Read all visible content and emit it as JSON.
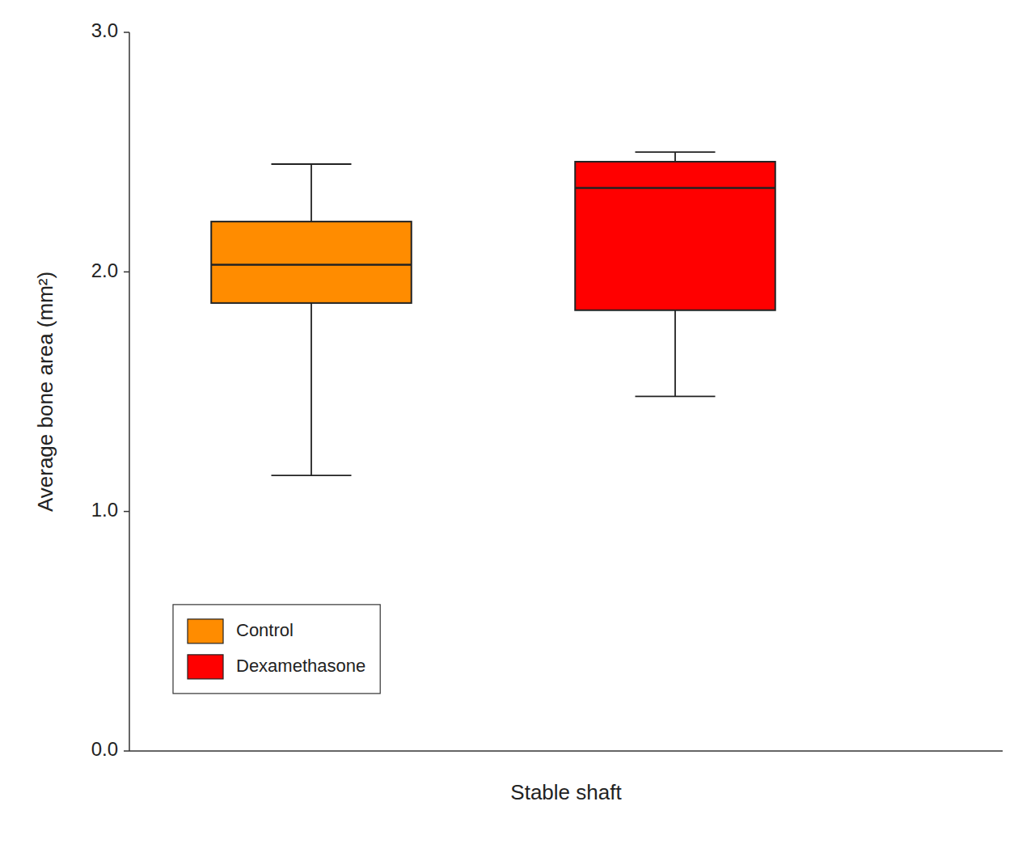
{
  "chart_data": {
    "type": "box",
    "xlabel": "Stable shaft",
    "ylabel": "Average bone area (mm²)",
    "series": [
      {
        "name": "Control",
        "color": "#FF8C00",
        "whisker_low": 1.15,
        "q1": 1.87,
        "median": 2.03,
        "q3": 2.21,
        "whisker_high": 2.45
      },
      {
        "name": "Dexamethasone",
        "color": "#FF0000",
        "whisker_low": 1.48,
        "q1": 1.84,
        "median": 2.35,
        "q3": 2.46,
        "whisker_high": 2.5
      }
    ],
    "ylim": [
      0,
      3.0
    ],
    "yticks": [
      {
        "value": 0,
        "label": "0.0"
      },
      {
        "value": 1.0,
        "label": "1.0"
      },
      {
        "value": 2.0,
        "label": "2.0"
      },
      {
        "value": 3.0,
        "label": "3.0"
      }
    ],
    "grid": false,
    "legend": "lower left",
    "tick_labels": "y"
  }
}
